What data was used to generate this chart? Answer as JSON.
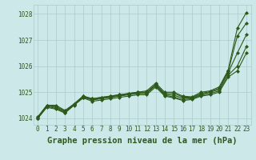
{
  "title": "Graphe pression niveau de la mer (hPa)",
  "background_color": "#cce8e8",
  "grid_color": "#aacccc",
  "line_color": "#2d5a1b",
  "x_values": [
    0,
    1,
    2,
    3,
    4,
    5,
    6,
    7,
    8,
    9,
    10,
    11,
    12,
    13,
    14,
    15,
    16,
    17,
    18,
    19,
    20,
    21,
    22,
    23
  ],
  "series": [
    [
      1024.05,
      1024.5,
      1024.5,
      1024.3,
      1024.55,
      1024.85,
      1024.75,
      1024.8,
      1024.85,
      1024.9,
      1024.95,
      1025.0,
      1025.05,
      1025.35,
      1025.0,
      1025.0,
      1024.85,
      1024.82,
      1025.0,
      1025.05,
      1025.2,
      1025.85,
      1027.45,
      1028.05
    ],
    [
      1024.05,
      1024.5,
      1024.45,
      1024.28,
      1024.55,
      1024.85,
      1024.75,
      1024.8,
      1024.85,
      1024.9,
      1024.95,
      1025.0,
      1025.0,
      1025.3,
      1024.95,
      1024.95,
      1024.82,
      1024.8,
      1024.95,
      1025.02,
      1025.15,
      1025.8,
      1027.15,
      1027.65
    ],
    [
      1024.0,
      1024.48,
      1024.42,
      1024.25,
      1024.52,
      1024.82,
      1024.72,
      1024.77,
      1024.82,
      1024.87,
      1024.92,
      1024.97,
      1024.97,
      1025.28,
      1024.92,
      1024.88,
      1024.78,
      1024.77,
      1024.92,
      1025.0,
      1025.1,
      1025.75,
      1026.5,
      1027.2
    ],
    [
      1024.0,
      1024.45,
      1024.38,
      1024.22,
      1024.52,
      1024.8,
      1024.7,
      1024.75,
      1024.8,
      1024.85,
      1024.9,
      1024.95,
      1024.95,
      1025.25,
      1024.88,
      1024.82,
      1024.72,
      1024.75,
      1024.88,
      1024.95,
      1025.05,
      1025.65,
      1026.0,
      1026.75
    ],
    [
      1024.0,
      1024.42,
      1024.35,
      1024.2,
      1024.5,
      1024.78,
      1024.65,
      1024.7,
      1024.75,
      1024.8,
      1024.85,
      1024.9,
      1024.9,
      1025.2,
      1024.85,
      1024.78,
      1024.68,
      1024.72,
      1024.85,
      1024.9,
      1025.0,
      1025.58,
      1025.82,
      1026.5
    ]
  ],
  "ylim": [
    1023.75,
    1028.35
  ],
  "yticks": [
    1024,
    1025,
    1026,
    1027,
    1028
  ],
  "xticks": [
    0,
    1,
    2,
    3,
    4,
    5,
    6,
    7,
    8,
    9,
    10,
    11,
    12,
    13,
    14,
    15,
    16,
    17,
    18,
    19,
    20,
    21,
    22,
    23
  ],
  "marker": "D",
  "markersize": 2.0,
  "linewidth": 0.8,
  "tick_fontsize": 5.5,
  "title_fontsize": 7.5,
  "tick_color": "#2d5a1b",
  "title_color": "#2d5a1b"
}
